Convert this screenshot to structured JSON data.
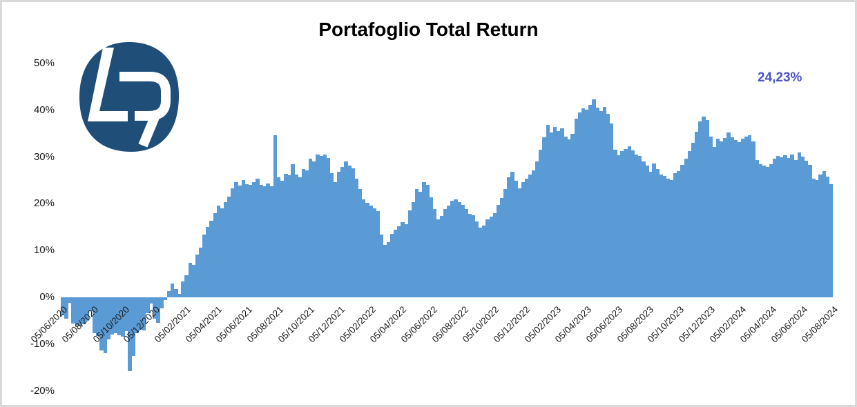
{
  "title": "Portafoglio Total Return",
  "final_value_label": "24,23%",
  "logo": {
    "letters": "LR",
    "bg_color": "#1F4E79",
    "letter_color": "#FFFFFF"
  },
  "colors": {
    "bar": "#5B9BD5",
    "final_label": "#4B52C6",
    "title": "#000000",
    "axis_text": "#1A1A1A",
    "frame_border": "#D9D9D9",
    "logo_bg": "#1F4E79"
  },
  "chart_data": {
    "type": "bar",
    "title": "Portafoglio Total Return",
    "xlabel": "",
    "ylabel": "",
    "unit": "%",
    "grid": false,
    "legend": "none",
    "ylim": [
      -20,
      50
    ],
    "x_start": "05/06/2020",
    "x_interval": "weekly",
    "final_value": 24.23,
    "y_tick_values": [
      50,
      40,
      30,
      20,
      10,
      0,
      -10,
      -20
    ],
    "y_tick_labels": [
      "50%",
      "40%",
      "30%",
      "20%",
      "10%",
      "0%",
      "-10%",
      "-20%"
    ],
    "x_tick_labels": [
      "05/06/2020",
      "05/08/2020",
      "05/10/2020",
      "05/12/2020",
      "05/02/2021",
      "05/04/2021",
      "05/06/2021",
      "05/08/2021",
      "05/10/2021",
      "05/12/2021",
      "05/02/2022",
      "05/04/2022",
      "05/06/2022",
      "05/08/2022",
      "05/10/2022",
      "05/12/2022",
      "05/02/2023",
      "05/04/2023",
      "05/06/2023",
      "05/08/2023",
      "05/10/2023",
      "05/12/2023",
      "05/02/2024",
      "05/04/2024",
      "05/06/2024",
      "05/08/2024"
    ],
    "values": [
      -3.8,
      -4.6,
      -1.2,
      -5.6,
      -6.0,
      -6.2,
      -5.8,
      -5.0,
      -3.0,
      -7.6,
      -8.3,
      -11.4,
      -12.0,
      -9.0,
      -8.0,
      -7.6,
      -8.1,
      -8.4,
      -7.2,
      -15.8,
      -12.5,
      -7.6,
      -6.9,
      -7.1,
      -3.4,
      -1.3,
      -4.6,
      -5.5,
      -2.4,
      -0.6,
      1.4,
      3.0,
      1.8,
      0.7,
      3.4,
      4.7,
      7.4,
      6.9,
      9.2,
      10.6,
      13.4,
      15.1,
      16.3,
      18.0,
      19.6,
      19.0,
      20.4,
      21.6,
      23.3,
      24.6,
      23.9,
      25.1,
      24.2,
      24.0,
      24.6,
      25.3,
      24.1,
      23.7,
      24.3,
      23.8,
      34.6,
      25.6,
      25.0,
      26.4,
      26.1,
      28.4,
      26.3,
      25.7,
      27.5,
      27.2,
      29.6,
      29.1,
      30.5,
      30.2,
      30.6,
      29.8,
      26.6,
      24.6,
      26.9,
      27.9,
      29.0,
      28.2,
      27.6,
      25.4,
      23.1,
      20.9,
      20.2,
      19.6,
      19.0,
      18.4,
      13.4,
      11.2,
      11.8,
      13.6,
      14.4,
      15.2,
      16.1,
      15.6,
      18.6,
      20.3,
      23.2,
      22.5,
      24.6,
      24.1,
      21.4,
      18.9,
      16.6,
      17.4,
      18.9,
      19.6,
      20.6,
      21.0,
      20.3,
      19.8,
      18.9,
      17.9,
      17.5,
      16.2,
      14.9,
      15.4,
      16.6,
      17.2,
      18.0,
      19.8,
      21.3,
      23.1,
      25.6,
      26.8,
      25.0,
      23.3,
      24.6,
      25.4,
      26.2,
      27.1,
      29.0,
      31.5,
      34.2,
      36.8,
      35.2,
      36.4,
      35.6,
      36.2,
      34.3,
      33.8,
      35.0,
      38.2,
      39.6,
      40.4,
      40.1,
      41.2,
      42.3,
      40.6,
      39.8,
      40.7,
      39.3,
      37.2,
      31.6,
      30.4,
      31.2,
      31.7,
      32.3,
      31.4,
      30.6,
      30.2,
      29.0,
      28.2,
      26.9,
      28.6,
      27.4,
      26.3,
      25.9,
      25.3,
      25.1,
      26.6,
      27.0,
      28.3,
      29.6,
      31.2,
      33.0,
      35.4,
      37.6,
      38.6,
      37.9,
      34.4,
      32.1,
      33.9,
      33.3,
      34.1,
      35.2,
      34.2,
      33.6,
      33.2,
      33.9,
      34.3,
      34.6,
      33.4,
      29.3,
      28.5,
      28.1,
      27.9,
      28.4,
      29.7,
      30.2,
      30.0,
      30.4,
      29.8,
      30.6,
      29.4,
      31.0,
      30.1,
      29.2,
      28.3,
      25.4,
      25.1,
      26.2,
      27.0,
      25.8,
      24.23
    ]
  }
}
